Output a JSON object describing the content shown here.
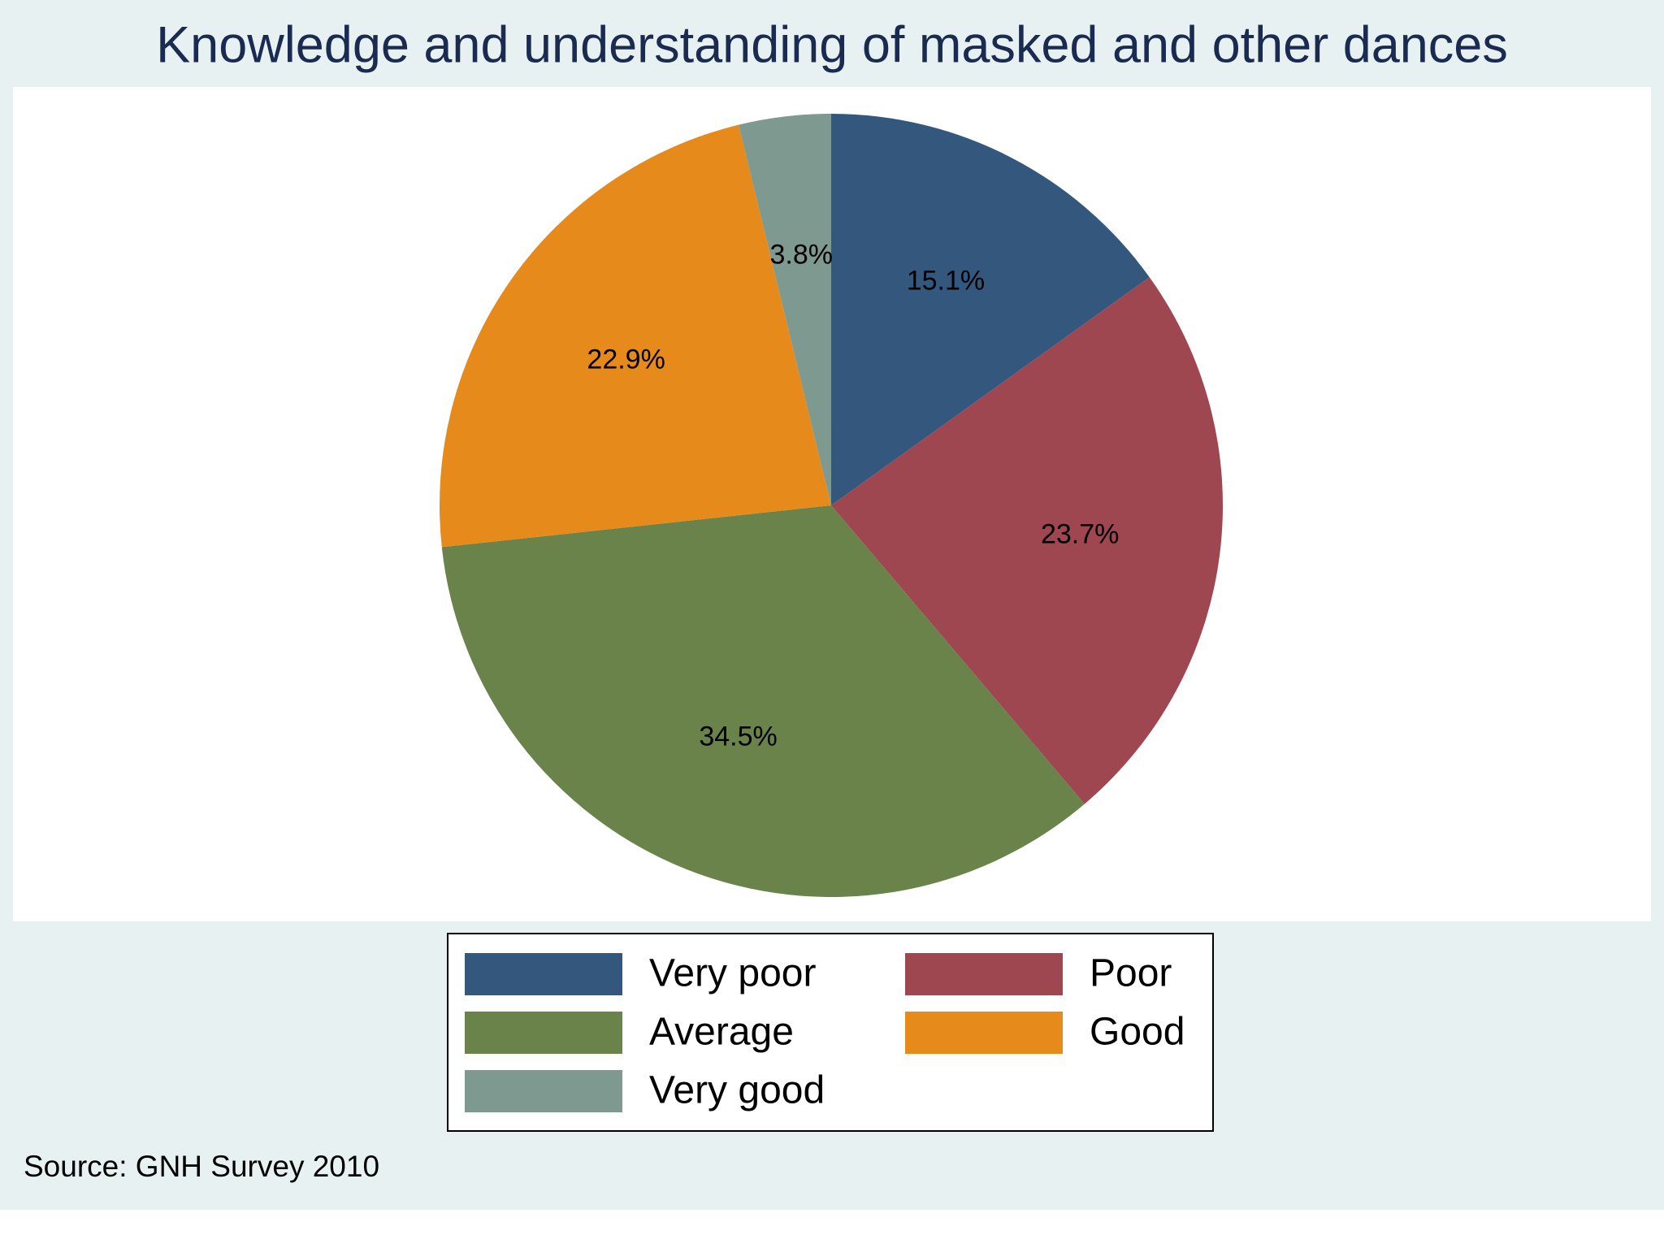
{
  "chart_data": {
    "type": "pie",
    "title": "Knowledge and understanding of masked and other dances",
    "categories": [
      "Very poor",
      "Poor",
      "Average",
      "Good",
      "Very good"
    ],
    "values": [
      15.1,
      23.7,
      34.5,
      22.9,
      3.8
    ],
    "value_labels": [
      "15.1%",
      "23.7%",
      "34.5%",
      "22.9%",
      "3.8%"
    ],
    "colors": [
      "#34587d",
      "#9e4751",
      "#69834a",
      "#e68a1c",
      "#7e9990"
    ],
    "legend": "bottom",
    "source": "Source: GNH Survey 2010"
  }
}
